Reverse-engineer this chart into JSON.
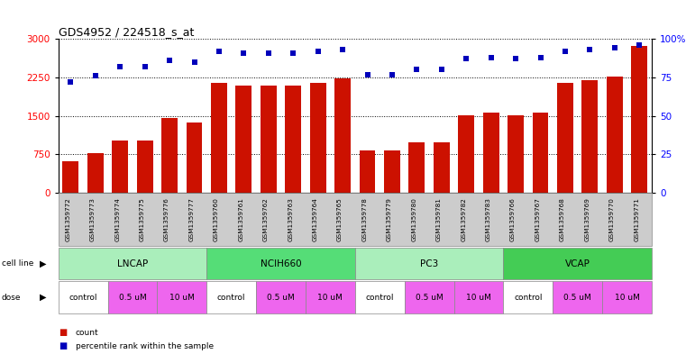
{
  "title": "GDS4952 / 224518_s_at",
  "samples": [
    "GSM1359772",
    "GSM1359773",
    "GSM1359774",
    "GSM1359775",
    "GSM1359776",
    "GSM1359777",
    "GSM1359760",
    "GSM1359761",
    "GSM1359762",
    "GSM1359763",
    "GSM1359764",
    "GSM1359765",
    "GSM1359778",
    "GSM1359779",
    "GSM1359780",
    "GSM1359781",
    "GSM1359782",
    "GSM1359783",
    "GSM1359766",
    "GSM1359767",
    "GSM1359768",
    "GSM1359769",
    "GSM1359770",
    "GSM1359771"
  ],
  "counts": [
    620,
    770,
    1020,
    1020,
    1460,
    1380,
    2150,
    2100,
    2100,
    2100,
    2150,
    2230,
    830,
    820,
    990,
    990,
    1510,
    1560,
    1510,
    1560,
    2150,
    2200,
    2270,
    2870
  ],
  "percentile_ranks": [
    72,
    76,
    82,
    82,
    86,
    85,
    92,
    91,
    91,
    91,
    92,
    93,
    77,
    77,
    80,
    80,
    87,
    88,
    87,
    88,
    92,
    93,
    94,
    96
  ],
  "cell_lines": [
    {
      "name": "LNCAP",
      "start": 0,
      "end": 6,
      "color": "#AAEEBB"
    },
    {
      "name": "NCIH660",
      "start": 6,
      "end": 12,
      "color": "#55DD77"
    },
    {
      "name": "PC3",
      "start": 12,
      "end": 18,
      "color": "#AAEEBB"
    },
    {
      "name": "VCAP",
      "start": 18,
      "end": 24,
      "color": "#44CC55"
    }
  ],
  "doses": [
    {
      "label": "control",
      "color": "#ffffff"
    },
    {
      "label": "0.5 uM",
      "color": "#EE66EE"
    },
    {
      "label": "10 uM",
      "color": "#EE66EE"
    }
  ],
  "bar_color": "#CC1100",
  "dot_color": "#0000BB",
  "left_yaxis_ticks": [
    0,
    750,
    1500,
    2250,
    3000
  ],
  "right_yaxis_ticks": [
    0,
    25,
    50,
    75,
    100
  ],
  "background_color": "#ffffff",
  "sample_bg_color": "#CCCCCC",
  "legend_count_label": "count",
  "legend_percentile_label": "percentile rank within the sample"
}
